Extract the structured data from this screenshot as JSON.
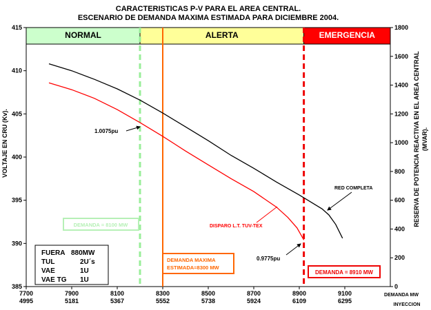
{
  "chart_data": {
    "type": "line",
    "title": [
      "CARACTERISTICAS P-V PARA EL AREA CENTRAL.",
      "ESCENARIO DE DEMANDA MAXIMA ESTIMADA PARA DICIEMBRE 2004."
    ],
    "ylabel": "VOLTAJE EN CRU (Kv).",
    "y2label": [
      "RESERVA DE POTENCIA REACTIVA EN EL AREA CENTRAL",
      "(MVAR)."
    ],
    "xlabel": "DEMANDA MW",
    "xlabel2": "INYECCION",
    "xlim": [
      7700,
      9300
    ],
    "ylim": [
      385,
      415
    ],
    "y2lim": [
      0,
      1800
    ],
    "x_ticks": [
      7700,
      7900,
      8100,
      8300,
      8500,
      8700,
      8900,
      9100
    ],
    "x_ticks_labels": [
      "7700",
      "7900",
      "8100",
      "8300",
      "8500",
      "8700",
      "8900",
      "9100"
    ],
    "x2_ticks_labels": [
      "4995",
      "5181",
      "5367",
      "5552",
      "5738",
      "5924",
      "6109",
      "6295"
    ],
    "y_ticks": [
      385,
      390,
      395,
      400,
      405,
      410,
      415
    ],
    "y_ticks_labels": [
      "385",
      "390",
      "395",
      "400",
      "405",
      "410",
      "415"
    ],
    "y2_ticks": [
      0,
      200,
      400,
      600,
      800,
      1000,
      1200,
      1400,
      1600,
      1800
    ],
    "y2_ticks_labels": [
      "0",
      "200",
      "400",
      "600",
      "800",
      "1000",
      "1200",
      "1400",
      "1600",
      "1800"
    ],
    "zones": [
      {
        "label": "NORMAL",
        "from": 7700,
        "to": 8200,
        "color": "#ccffcc",
        "text_color": "#000000"
      },
      {
        "label": "ALERTA",
        "from": 8200,
        "to": 8920,
        "color": "#ffff99",
        "text_color": "#000000"
      },
      {
        "label": "EMERGENCIA",
        "from": 8920,
        "to": 9300,
        "color": "#ff0000",
        "text_color": "#ffffff"
      }
    ],
    "series": [
      {
        "name": "RED COMPLETA",
        "color": "#000000",
        "x": [
          7800,
          7900,
          8000,
          8100,
          8200,
          8300,
          8400,
          8500,
          8600,
          8700,
          8800,
          8900,
          9000,
          9030,
          9060,
          9090
        ],
        "y": [
          410.8,
          410.0,
          409.0,
          407.9,
          406.6,
          405.1,
          403.5,
          401.9,
          400.2,
          398.7,
          397.1,
          395.6,
          394.0,
          393.3,
          392.2,
          390.6
        ]
      },
      {
        "name": "DISPARO L.T. TUV-TEX",
        "color": "#ff0000",
        "x": [
          7800,
          7900,
          8000,
          8100,
          8200,
          8300,
          8400,
          8500,
          8600,
          8700,
          8800,
          8850,
          8890,
          8920
        ],
        "y": [
          408.6,
          407.8,
          406.8,
          405.5,
          404.0,
          402.4,
          400.7,
          399.1,
          397.5,
          396.0,
          394.2,
          393.0,
          391.8,
          390.4
        ]
      }
    ],
    "vlines": [
      {
        "x": 8200,
        "color": "#99ee99",
        "style": "dashed"
      },
      {
        "x": 8300,
        "color": "#ff6600",
        "style": "solid"
      },
      {
        "x": 8920,
        "color": "#ee0000",
        "style": "dashed"
      }
    ],
    "annotations": [
      {
        "text": "1.0075pu",
        "x": 8200,
        "y": 403.5
      },
      {
        "text": "RED COMPLETA",
        "x": 9000,
        "y": 394.0
      },
      {
        "text": "DISPARO L.T. TUV-TEX",
        "x": 8800,
        "y": 394.2
      },
      {
        "text": "0.9775pu",
        "x": 8920,
        "y": 390.4
      }
    ],
    "boxes": {
      "demanda_8100": "DEMANDA  =  8100 MW",
      "demanda_maxima": [
        "DEMANDA MAXIMA",
        "ESTIMADA=8300 MW"
      ],
      "demanda_8910": "DEMANDA = 8910 MW"
    },
    "info_table": [
      [
        "FUERA",
        "880MW"
      ],
      [
        "TUL",
        "2U´s"
      ],
      [
        "VAE",
        "1U"
      ],
      [
        "VAE TG",
        "1U"
      ]
    ],
    "grid": false,
    "legend": "none"
  }
}
